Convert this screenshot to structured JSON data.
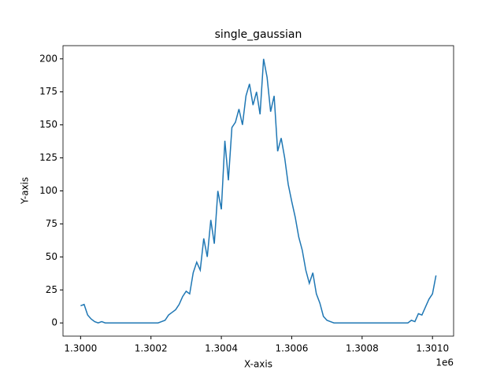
{
  "chart_data": {
    "type": "line",
    "title": "single_gaussian",
    "x_label": "X-axis",
    "y_label": "Y-axis",
    "x_offset_label": "1e6",
    "x": [
      1300000,
      1300010,
      1300020,
      1300030,
      1300040,
      1300050,
      1300060,
      1300070,
      1300080,
      1300090,
      1300100,
      1300110,
      1300120,
      1300130,
      1300140,
      1300150,
      1300160,
      1300170,
      1300180,
      1300190,
      1300200,
      1300210,
      1300220,
      1300230,
      1300240,
      1300250,
      1300260,
      1300270,
      1300280,
      1300290,
      1300300,
      1300310,
      1300320,
      1300330,
      1300340,
      1300350,
      1300360,
      1300370,
      1300380,
      1300390,
      1300400,
      1300410,
      1300420,
      1300430,
      1300440,
      1300450,
      1300460,
      1300470,
      1300480,
      1300490,
      1300500,
      1300510,
      1300520,
      1300530,
      1300540,
      1300550,
      1300560,
      1300570,
      1300580,
      1300590,
      1300600,
      1300610,
      1300620,
      1300630,
      1300640,
      1300650,
      1300660,
      1300670,
      1300680,
      1300690,
      1300700,
      1300710,
      1300720,
      1300730,
      1300740,
      1300750,
      1300760,
      1300770,
      1300780,
      1300790,
      1300800,
      1300810,
      1300820,
      1300830,
      1300840,
      1300850,
      1300860,
      1300870,
      1300880,
      1300890,
      1300900,
      1300910,
      1300920,
      1300930,
      1300940,
      1300950,
      1300960,
      1300970,
      1300980,
      1300990,
      1301000,
      1301010
    ],
    "series": [
      {
        "color": "#1f77b4",
        "values": [
          13,
          14,
          6,
          3,
          1,
          0,
          1,
          0,
          0,
          0,
          0,
          0,
          0,
          0,
          0,
          0,
          0,
          0,
          0,
          0,
          0,
          0,
          0,
          1,
          2,
          6,
          8,
          10,
          14,
          20,
          24,
          22,
          38,
          46,
          40,
          64,
          50,
          78,
          60,
          100,
          86,
          138,
          108,
          148,
          152,
          162,
          150,
          172,
          181,
          165,
          175,
          158,
          200,
          186,
          160,
          172,
          130,
          140,
          125,
          105,
          92,
          80,
          65,
          55,
          40,
          30,
          38,
          22,
          15,
          5,
          2,
          1,
          0,
          0,
          0,
          0,
          0,
          0,
          0,
          0,
          0,
          0,
          0,
          0,
          0,
          0,
          0,
          0,
          0,
          0,
          0,
          0,
          0,
          0,
          2,
          1,
          7,
          6,
          12,
          18,
          22,
          36
        ]
      }
    ],
    "xlim": [
      1299950,
      1301060
    ],
    "ylim": [
      -10,
      210
    ],
    "xticks": [
      {
        "value": 1300000,
        "label": "1.3000"
      },
      {
        "value": 1300200,
        "label": "1.3002"
      },
      {
        "value": 1300400,
        "label": "1.3004"
      },
      {
        "value": 1300600,
        "label": "1.3006"
      },
      {
        "value": 1300800,
        "label": "1.3008"
      },
      {
        "value": 1301000,
        "label": "1.3010"
      }
    ],
    "yticks": [
      0,
      25,
      50,
      75,
      100,
      125,
      150,
      175,
      200
    ]
  }
}
